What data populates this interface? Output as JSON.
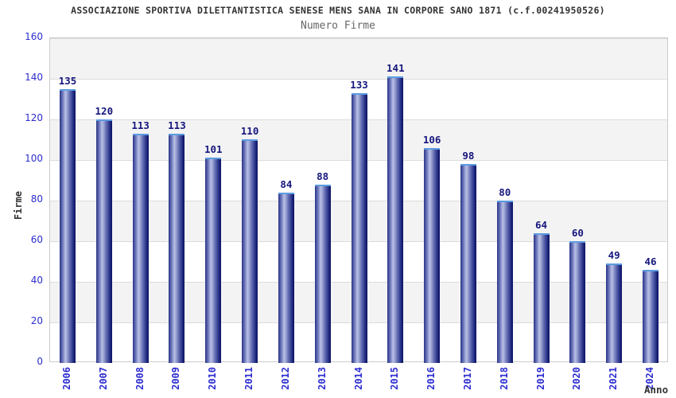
{
  "chart_data": {
    "type": "bar",
    "title": "ASSOCIAZIONE SPORTIVA DILETTANTISTICA SENESE MENS SANA IN CORPORE SANO 1871 (c.f.00241950526)",
    "subtitle": "Numero Firme",
    "xlabel": "Anno",
    "ylabel": "Firme",
    "categories": [
      "2006",
      "2007",
      "2008",
      "2009",
      "2010",
      "2011",
      "2012",
      "2013",
      "2014",
      "2015",
      "2016",
      "2017",
      "2018",
      "2019",
      "2020",
      "2021",
      "2024"
    ],
    "values": [
      135,
      120,
      113,
      113,
      101,
      110,
      84,
      88,
      133,
      141,
      106,
      98,
      80,
      64,
      60,
      49,
      46
    ],
    "ylim": [
      0,
      160
    ],
    "ytick_step": 20,
    "grid": "horizontal-bands",
    "legend": "none"
  },
  "colors": {
    "background": "#ffffff",
    "title": "#333333",
    "subtitle": "#666666",
    "axis_tick_label": "#2d2dd0",
    "value_label": "#16167e",
    "band_gray": "#f3f3f3",
    "gridline": "#dcdcdc",
    "plot_border": "#cccccc",
    "bar_dark": "#161e72",
    "bar_light": "#b8c0e6",
    "bar_cap": "#5b9ce0"
  }
}
